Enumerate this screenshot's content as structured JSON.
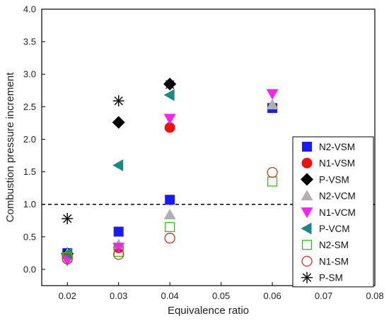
{
  "chart_data": {
    "type": "scatter",
    "xlabel": "Equivalence ratio",
    "ylabel": "Combustion pressure increment",
    "xlim": [
      0.015,
      0.08
    ],
    "ylim": [
      -0.25,
      4.0
    ],
    "xticks": [
      "0.02",
      "0.03",
      "0.04",
      "0.05",
      "0.06",
      "0.07",
      "0.08"
    ],
    "yticks": [
      "0.0",
      "0.5",
      "1.0",
      "1.5",
      "2.0",
      "2.5",
      "3.0",
      "3.5",
      "4.0"
    ],
    "reference_line": {
      "y": 1.0,
      "style": "dashed"
    },
    "legend_position": "bottom-right",
    "series": [
      {
        "name": "N2-VSM",
        "marker": "square-filled",
        "color": "#1a1aff",
        "points": [
          [
            0.02,
            0.25
          ],
          [
            0.03,
            0.58
          ],
          [
            0.04,
            1.07
          ],
          [
            0.06,
            2.48
          ]
        ]
      },
      {
        "name": "N1-VSM",
        "marker": "circle-filled",
        "color": "#ee1111",
        "points": [
          [
            0.02,
            0.22
          ],
          [
            0.03,
            0.33
          ],
          [
            0.04,
            2.18
          ]
        ]
      },
      {
        "name": "P-VSM",
        "marker": "diamond-filled",
        "color": "#000000",
        "points": [
          [
            0.02,
            0.24
          ],
          [
            0.03,
            2.26
          ],
          [
            0.04,
            2.85
          ]
        ]
      },
      {
        "name": "N2-VCM",
        "marker": "triangle-up-filled",
        "color": "#b0b0b0",
        "points": [
          [
            0.02,
            0.24
          ],
          [
            0.03,
            0.38
          ],
          [
            0.04,
            0.84
          ],
          [
            0.06,
            2.53
          ]
        ]
      },
      {
        "name": "N1-VCM",
        "marker": "triangle-down-filled",
        "color": "#ff22ee",
        "points": [
          [
            0.02,
            0.14
          ],
          [
            0.03,
            0.34
          ],
          [
            0.04,
            2.32
          ],
          [
            0.06,
            2.7
          ]
        ]
      },
      {
        "name": "P-VCM",
        "marker": "triangle-left-filled",
        "color": "#1a8a80",
        "points": [
          [
            0.02,
            0.24
          ],
          [
            0.03,
            1.6
          ],
          [
            0.04,
            2.68
          ]
        ]
      },
      {
        "name": "N2-SM",
        "marker": "square-open",
        "color": "#33bb22",
        "points": [
          [
            0.02,
            0.19
          ],
          [
            0.03,
            0.27
          ],
          [
            0.04,
            0.65
          ],
          [
            0.06,
            1.35
          ]
        ]
      },
      {
        "name": "N1-SM",
        "marker": "circle-open",
        "color": "#cc3322",
        "points": [
          [
            0.02,
            0.16
          ],
          [
            0.03,
            0.23
          ],
          [
            0.04,
            0.48
          ],
          [
            0.06,
            1.49
          ]
        ]
      },
      {
        "name": "P-SM",
        "marker": "asterisk",
        "color": "#111111",
        "points": [
          [
            0.02,
            0.78
          ],
          [
            0.03,
            2.59
          ],
          [
            0.04,
            2.84
          ]
        ]
      }
    ]
  }
}
